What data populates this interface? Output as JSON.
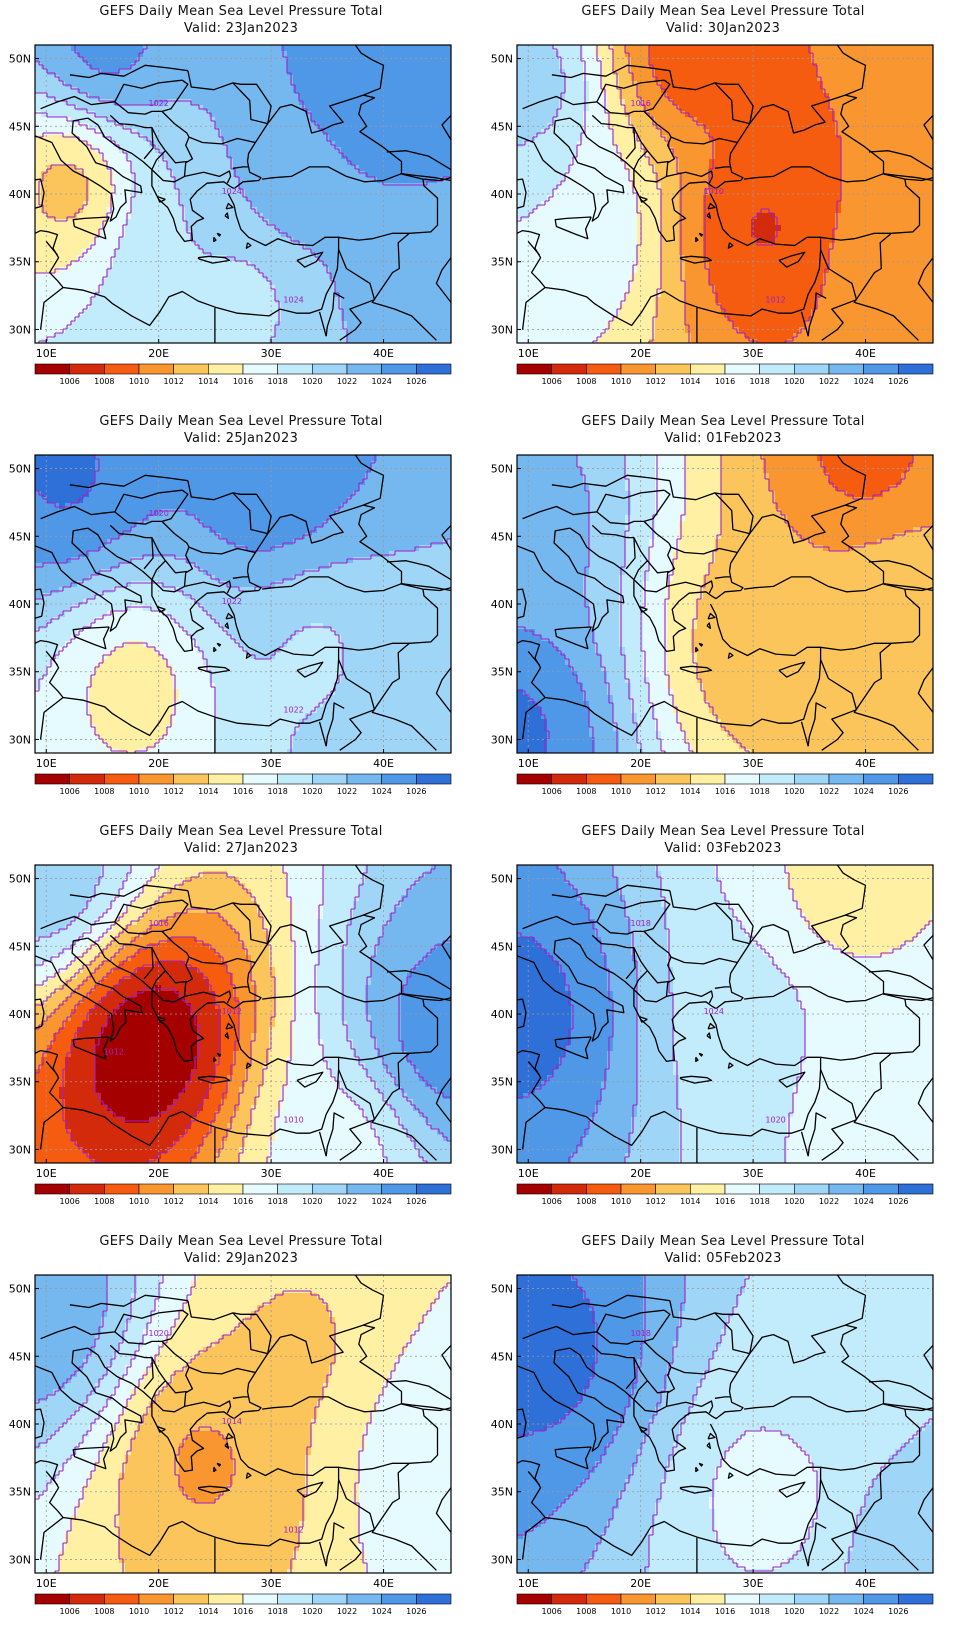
{
  "figure": {
    "panel_title": "GEFS Daily Mean Sea Level Pressure Total",
    "valid_prefix": "Valid: ",
    "lat_labels": [
      "30N",
      "35N",
      "40N",
      "45N",
      "50N"
    ],
    "lon_labels": [
      "10E",
      "20E",
      "30E",
      "40E"
    ],
    "lat_range": [
      29,
      51
    ],
    "lon_range": [
      9,
      46
    ],
    "colorbar_labels": [
      "1006",
      "1008",
      "1010",
      "1012",
      "1014",
      "1016",
      "1018",
      "1020",
      "1022",
      "1024",
      "1026"
    ],
    "colorbar_colors": [
      "#a50000",
      "#d42a0c",
      "#f55c0f",
      "#f99630",
      "#fbc55c",
      "#fff0a4",
      "#e5fbff",
      "#c2ecfb",
      "#9fd5f6",
      "#75b7ef",
      "#4f97e7",
      "#2f70d8"
    ],
    "contour_color": "#a020c8"
  },
  "panels": [
    {
      "valid": "23Jan2023",
      "labels": [
        "1022",
        "1024",
        "1024"
      ],
      "centers": [
        {
          "lon": 12,
          "lat": 40.5,
          "v": 1013,
          "r": 5
        },
        {
          "lon": 21,
          "lat": 36,
          "v": 1020,
          "r": 7
        },
        {
          "lon": 28,
          "lat": 33,
          "v": 1019,
          "r": 8
        },
        {
          "lon": 38,
          "lat": 47,
          "v": 1027.5,
          "r": 13
        },
        {
          "lon": 15,
          "lat": 50,
          "v": 1026,
          "r": 9
        },
        {
          "lon": 32,
          "lat": 41,
          "v": 1023.5,
          "r": 6
        },
        {
          "lon": 44,
          "lat": 33,
          "v": 1023.5,
          "r": 8
        }
      ]
    },
    {
      "valid": "30Jan2023",
      "labels": [
        "1016",
        "1010",
        "1012"
      ],
      "centers": [
        {
          "lon": 31,
          "lat": 37.5,
          "v": 1007.5,
          "r": 7
        },
        {
          "lon": 24,
          "lat": 50.5,
          "v": 1008,
          "r": 8
        },
        {
          "lon": 10,
          "lat": 48,
          "v": 1022,
          "r": 8
        },
        {
          "lon": 15,
          "lat": 38,
          "v": 1018,
          "r": 7
        },
        {
          "lon": 42,
          "lat": 35,
          "v": 1012,
          "r": 10
        }
      ]
    },
    {
      "valid": "25Jan2023",
      "labels": [
        "1020",
        "1022",
        "1022"
      ],
      "centers": [
        {
          "lon": 18,
          "lat": 34,
          "v": 1015,
          "r": 6
        },
        {
          "lon": 30,
          "lat": 47,
          "v": 1028,
          "r": 14
        },
        {
          "lon": 12,
          "lat": 49,
          "v": 1026.5,
          "r": 8
        },
        {
          "lon": 34,
          "lat": 36.5,
          "v": 1019.5,
          "r": 7
        },
        {
          "lon": 44,
          "lat": 33,
          "v": 1021.5,
          "r": 8
        }
      ]
    },
    {
      "valid": "01Feb2023",
      "labels": [],
      "centers": [
        {
          "lon": 30,
          "lat": 37,
          "v": 1012.5,
          "r": 8
        },
        {
          "lon": 40,
          "lat": 50.5,
          "v": 1009,
          "r": 8
        },
        {
          "lon": 9,
          "lat": 31,
          "v": 1027,
          "r": 10
        },
        {
          "lon": 10,
          "lat": 46,
          "v": 1023,
          "r": 8
        },
        {
          "lon": 43,
          "lat": 40,
          "v": 1014,
          "r": 9
        }
      ]
    },
    {
      "valid": "27Jan2023",
      "labels": [
        "1016",
        "1012",
        "1010",
        "1012"
      ],
      "centers": [
        {
          "lon": 19,
          "lat": 38,
          "v": 1003,
          "r": 9
        },
        {
          "lon": 45,
          "lat": 38,
          "v": 1026,
          "r": 9
        },
        {
          "lon": 10,
          "lat": 50,
          "v": 1022,
          "r": 7
        },
        {
          "lon": 36,
          "lat": 30,
          "v": 1017,
          "r": 7
        }
      ]
    },
    {
      "valid": "03Feb2023",
      "labels": [
        "1018",
        "1024",
        "1020"
      ],
      "centers": [
        {
          "lon": 10,
          "lat": 40,
          "v": 1027,
          "r": 10
        },
        {
          "lon": 38,
          "lat": 49,
          "v": 1015,
          "r": 8
        },
        {
          "lon": 43,
          "lat": 35,
          "v": 1016.5,
          "r": 6
        },
        {
          "lon": 30,
          "lat": 40,
          "v": 1019,
          "r": 9
        }
      ]
    },
    {
      "valid": "29Jan2023",
      "labels": [
        "1020",
        "1014",
        "1012"
      ],
      "centers": [
        {
          "lon": 24,
          "lat": 37.5,
          "v": 1011.5,
          "r": 7
        },
        {
          "lon": 10,
          "lat": 48,
          "v": 1024,
          "r": 8
        },
        {
          "lon": 33,
          "lat": 45,
          "v": 1013.5,
          "r": 10
        },
        {
          "lon": 45,
          "lat": 38,
          "v": 1018,
          "r": 7
        }
      ]
    },
    {
      "valid": "05Feb2023",
      "labels": [
        "1018"
      ],
      "centers": [
        {
          "lon": 12,
          "lat": 45,
          "v": 1027,
          "r": 11
        },
        {
          "lon": 32,
          "lat": 35,
          "v": 1017,
          "r": 7
        },
        {
          "lon": 38,
          "lat": 43,
          "v": 1019,
          "r": 7
        },
        {
          "lon": 45,
          "lat": 31,
          "v": 1022,
          "r": 7
        }
      ]
    }
  ]
}
